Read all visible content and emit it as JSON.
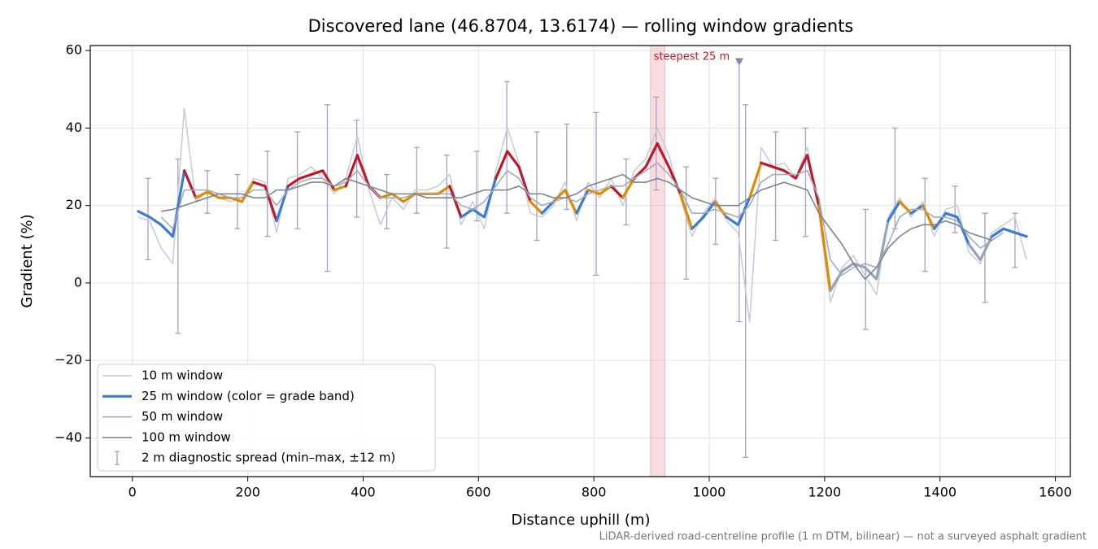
{
  "chart_data": {
    "type": "line",
    "title": "Discovered lane (46.8704, 13.6174) — rolling window gradients",
    "xlabel": "Distance uphill (m)",
    "ylabel": "Gradient (%)",
    "footnote": "LiDAR-derived road-centreline profile (1 m DTM, bilinear) — not a surveyed asphalt gradient",
    "annotation": "steepest 25 m",
    "xlim": [
      -73,
      1626
    ],
    "ylim": [
      -50,
      61.3
    ],
    "xticks": [
      0,
      200,
      400,
      600,
      800,
      1000,
      1200,
      1400,
      1600
    ],
    "yticks": [
      {
        "value": -40,
        "label": "−40"
      },
      {
        "value": -20,
        "label": "−20"
      },
      0,
      20,
      40,
      60
    ],
    "grid": true,
    "legend": "lower left",
    "steepest_span": [
      898,
      923
    ],
    "span_color": "#e88a94",
    "steepest_marker": {
      "x": 1052,
      "y": 57
    },
    "x": [
      10,
      30,
      50,
      70,
      90,
      110,
      130,
      150,
      170,
      190,
      210,
      230,
      250,
      270,
      290,
      310,
      330,
      350,
      370,
      390,
      410,
      430,
      450,
      470,
      490,
      510,
      530,
      550,
      570,
      590,
      610,
      630,
      650,
      670,
      690,
      710,
      730,
      750,
      770,
      790,
      810,
      830,
      850,
      870,
      890,
      910,
      930,
      950,
      970,
      990,
      1010,
      1030,
      1050,
      1070,
      1090,
      1110,
      1130,
      1150,
      1170,
      1190,
      1210,
      1230,
      1250,
      1270,
      1290,
      1310,
      1330,
      1350,
      1370,
      1390,
      1410,
      1430,
      1450,
      1470,
      1490,
      1510,
      1530,
      1550
    ],
    "series": [
      {
        "name": "10 m window",
        "color": "#c3cbd3",
        "width": 1.5,
        "values": [
          17,
          16,
          9,
          5,
          45,
          21,
          24,
          22,
          21,
          22,
          27,
          26,
          13,
          27,
          28,
          30,
          27,
          23,
          27,
          38,
          24,
          15,
          22,
          19,
          24,
          24,
          25,
          28,
          15,
          21,
          14,
          29,
          40,
          31,
          18,
          17,
          20,
          26,
          16,
          26,
          22,
          27,
          20,
          29,
          32,
          40,
          33,
          22,
          12,
          18,
          22,
          16,
          13,
          -10,
          35,
          30,
          31,
          27,
          35,
          18,
          -5,
          4,
          7,
          2,
          -3,
          17,
          22,
          17,
          21,
          12,
          19,
          20,
          8,
          5,
          13,
          15,
          17,
          6
        ]
      },
      {
        "name": "25 m window (color = grade band)",
        "color": "#3a7bd5",
        "width": 3.2,
        "band_thresholds": [
          12,
          20,
          25
        ],
        "band_colors": [
          "#94a3b8",
          "#3a7bd5",
          "#e08a00",
          "#c0182a"
        ],
        "values": [
          18.5,
          17,
          15,
          12,
          29,
          22,
          23.5,
          22,
          22,
          21,
          26,
          25,
          16,
          25,
          27,
          28,
          29,
          24,
          25,
          33,
          25,
          22,
          23,
          21,
          23,
          23,
          23,
          25,
          17,
          19,
          17,
          27,
          34,
          30,
          21,
          18,
          21,
          24,
          18,
          24,
          23,
          25,
          22,
          27,
          30,
          36,
          30,
          23,
          14,
          17,
          21,
          17,
          15,
          22,
          31,
          30,
          29,
          27,
          33,
          20,
          -2,
          3,
          5,
          4,
          1,
          16,
          21,
          18,
          20,
          14,
          18,
          17,
          10,
          6,
          12,
          14,
          13,
          12
        ]
      },
      {
        "name": "50 m window",
        "color": "#a3acbc",
        "width": 1.6,
        "values": [
          null,
          null,
          17,
          14,
          24,
          24,
          24,
          23,
          22,
          22,
          24,
          24,
          20,
          24,
          26,
          27,
          27,
          25,
          26,
          29,
          25,
          22,
          22,
          22,
          23,
          23,
          23,
          23,
          20,
          19,
          21,
          25,
          29,
          27,
          22,
          20,
          21,
          22,
          21,
          23,
          24,
          25,
          25,
          27,
          29,
          31,
          28,
          24,
          18,
          18,
          19,
          18,
          17,
          20,
          26,
          28,
          28,
          28,
          29,
          22,
          6,
          2,
          4,
          5,
          4,
          10,
          17,
          19,
          19,
          17,
          17,
          16,
          12,
          9,
          11,
          13,
          null,
          null
        ]
      },
      {
        "name": "100 m window",
        "color": "#788394",
        "width": 1.6,
        "values": [
          null,
          null,
          18.5,
          19,
          20,
          21,
          22,
          23,
          23,
          23,
          22,
          22,
          24,
          24,
          25,
          26,
          26,
          25,
          27,
          26,
          25,
          24,
          23,
          23,
          23,
          22,
          22,
          22,
          22,
          23,
          24,
          24,
          24,
          25,
          23,
          23,
          22,
          22,
          23,
          25,
          26,
          27,
          28,
          26,
          26,
          27,
          26,
          24,
          22,
          21,
          20,
          20,
          20,
          22,
          24,
          25,
          26,
          25,
          24,
          18,
          14,
          10,
          5,
          1,
          4,
          9,
          12,
          14,
          15,
          15,
          16,
          15,
          13,
          12,
          11,
          null,
          null,
          null
        ]
      }
    ],
    "errorbars": {
      "name": "2 m diagnostic spread (min–max, ±12 m)",
      "color": "#a69fc4",
      "x": [
        27,
        79,
        130,
        182,
        234,
        286,
        338,
        389,
        441,
        493,
        545,
        597,
        649,
        701,
        753,
        804,
        856,
        908,
        960,
        1011,
        1052,
        1063,
        1115,
        1167,
        1271,
        1322,
        1374,
        1426,
        1478,
        1530
      ],
      "low": [
        6,
        -13,
        18,
        14,
        12,
        14,
        3,
        17,
        14,
        18,
        9,
        16,
        18,
        11,
        19,
        2,
        15,
        24,
        1,
        10,
        -10,
        -45,
        11,
        12,
        -12,
        14,
        3,
        13,
        -5,
        4
      ],
      "high": [
        27,
        32,
        29,
        28,
        34,
        39,
        46,
        42,
        28,
        35,
        33,
        34,
        52,
        39,
        41,
        44,
        32,
        48,
        30,
        27,
        57,
        46,
        39,
        40,
        19,
        40,
        27,
        25,
        18,
        18
      ]
    }
  }
}
